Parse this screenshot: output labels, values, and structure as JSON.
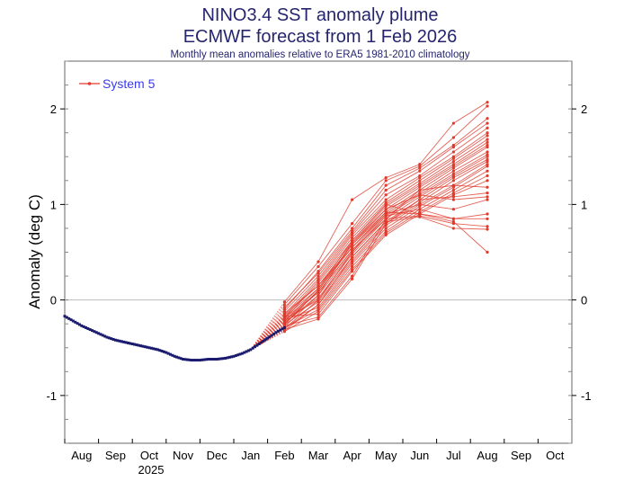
{
  "chart_data": {
    "type": "line",
    "title": "NINO3.4 SST anomaly plume",
    "subtitle": "ECMWF forecast from 1 Feb 2026",
    "caption": "Monthly mean anomalies relative to ERA5 1981-2010 climatology",
    "ylabel": "Anomaly (deg C)",
    "xlabel": "",
    "ylim": [
      -1.5,
      2.5
    ],
    "yticks": [
      -1,
      0,
      1,
      2
    ],
    "ytick_labels": [
      "-1",
      "0",
      "1",
      "2"
    ],
    "xticks": [
      "Aug",
      "Sep",
      "Oct",
      "Nov",
      "Dec",
      "Jan",
      "Feb",
      "Mar",
      "Apr",
      "May",
      "Jun",
      "Jul",
      "Aug",
      "Sep",
      "Oct"
    ],
    "year_label": "2025",
    "legend": {
      "placement": "top-left",
      "entries": [
        "System 5"
      ]
    },
    "colors": {
      "forecast": "#e03a2c",
      "observed": "#1a1a6e",
      "title": "#25256e",
      "legend_text": "#3a3aee",
      "zero_line": "#bbbbbb"
    },
    "observed": {
      "x_months_from_aug_2025_start": [
        0,
        0.25,
        0.5,
        0.75,
        1.0,
        1.25,
        1.5,
        1.75,
        2.0,
        2.25,
        2.5,
        2.75,
        3.0,
        3.25,
        3.5,
        3.75,
        4.0,
        4.25,
        4.5,
        4.75,
        5.0,
        5.25,
        5.5,
        5.75,
        6.0,
        6.25,
        6.5
      ],
      "values": [
        -0.17,
        -0.22,
        -0.27,
        -0.31,
        -0.35,
        -0.39,
        -0.42,
        -0.44,
        -0.46,
        -0.48,
        -0.5,
        -0.52,
        -0.55,
        -0.59,
        -0.62,
        -0.63,
        -0.63,
        -0.62,
        -0.62,
        -0.61,
        -0.59,
        -0.56,
        -0.52,
        -0.46,
        -0.4,
        -0.34,
        -0.29
      ]
    },
    "forecast": {
      "name": "System 5",
      "anchor": [
        5.5,
        -0.52
      ],
      "months": [
        "Feb",
        "Mar",
        "Apr",
        "May",
        "Jun",
        "Jul",
        "Aug"
      ],
      "x_months_from_aug_2025_start": [
        6.5,
        7.5,
        8.5,
        9.5,
        10.5,
        11.5,
        12.5
      ],
      "members": [
        [
          -0.02,
          0.4,
          1.05,
          1.28,
          1.42,
          1.85,
          2.07
        ],
        [
          -0.05,
          0.35,
          0.8,
          1.25,
          1.4,
          1.7,
          2.03
        ],
        [
          -0.1,
          0.3,
          0.75,
          1.2,
          1.38,
          1.62,
          1.9
        ],
        [
          -0.08,
          0.28,
          0.72,
          1.15,
          1.35,
          1.6,
          1.85
        ],
        [
          -0.12,
          0.25,
          0.7,
          1.1,
          1.3,
          1.55,
          1.8
        ],
        [
          -0.15,
          0.22,
          0.68,
          1.05,
          1.28,
          1.5,
          1.75
        ],
        [
          -0.18,
          0.2,
          0.65,
          1.02,
          1.25,
          1.48,
          1.72
        ],
        [
          -0.2,
          0.18,
          0.62,
          1.0,
          1.22,
          1.45,
          1.68
        ],
        [
          -0.14,
          0.15,
          0.6,
          0.98,
          1.2,
          1.42,
          1.65
        ],
        [
          -0.22,
          0.12,
          0.58,
          0.95,
          1.18,
          1.4,
          1.62
        ],
        [
          -0.25,
          0.1,
          0.55,
          0.92,
          1.15,
          1.38,
          1.6
        ],
        [
          -0.19,
          0.08,
          0.52,
          0.9,
          1.12,
          1.35,
          1.55
        ],
        [
          -0.28,
          0.05,
          0.5,
          0.88,
          1.1,
          1.32,
          1.52
        ],
        [
          -0.23,
          0.02,
          0.48,
          0.85,
          1.08,
          1.3,
          1.5
        ],
        [
          -0.3,
          0.0,
          0.45,
          0.82,
          1.05,
          1.28,
          1.47
        ],
        [
          -0.26,
          -0.02,
          0.42,
          0.8,
          1.02,
          1.25,
          1.45
        ],
        [
          -0.32,
          -0.05,
          0.4,
          0.78,
          1.0,
          1.2,
          1.42
        ],
        [
          -0.21,
          -0.08,
          0.38,
          0.75,
          0.98,
          1.18,
          1.4
        ],
        [
          -0.29,
          -0.1,
          0.35,
          0.72,
          0.95,
          1.15,
          1.35
        ],
        [
          -0.33,
          -0.12,
          0.32,
          0.7,
          0.92,
          1.12,
          1.3
        ],
        [
          -0.17,
          -0.15,
          0.3,
          0.68,
          0.9,
          1.1,
          1.25
        ],
        [
          -0.27,
          -0.18,
          0.25,
          0.85,
          1.15,
          1.2,
          1.18
        ],
        [
          -0.31,
          -0.2,
          0.22,
          0.8,
          1.05,
          1.08,
          1.12
        ],
        [
          -0.24,
          0.05,
          0.6,
          0.95,
          1.1,
          1.05,
          1.08
        ],
        [
          -0.16,
          0.15,
          0.55,
          0.9,
          1.0,
          0.95,
          1.05
        ],
        [
          -0.2,
          0.0,
          0.5,
          0.88,
          0.95,
          0.85,
          0.9
        ],
        [
          -0.26,
          0.1,
          0.58,
          0.92,
          0.9,
          0.85,
          0.85
        ],
        [
          -0.22,
          0.08,
          0.52,
          0.85,
          0.88,
          0.8,
          0.77
        ],
        [
          -0.3,
          -0.05,
          0.45,
          0.82,
          0.87,
          0.75,
          0.74
        ],
        [
          -0.18,
          0.12,
          0.62,
          1.0,
          0.9,
          0.82,
          0.5
        ]
      ]
    }
  }
}
